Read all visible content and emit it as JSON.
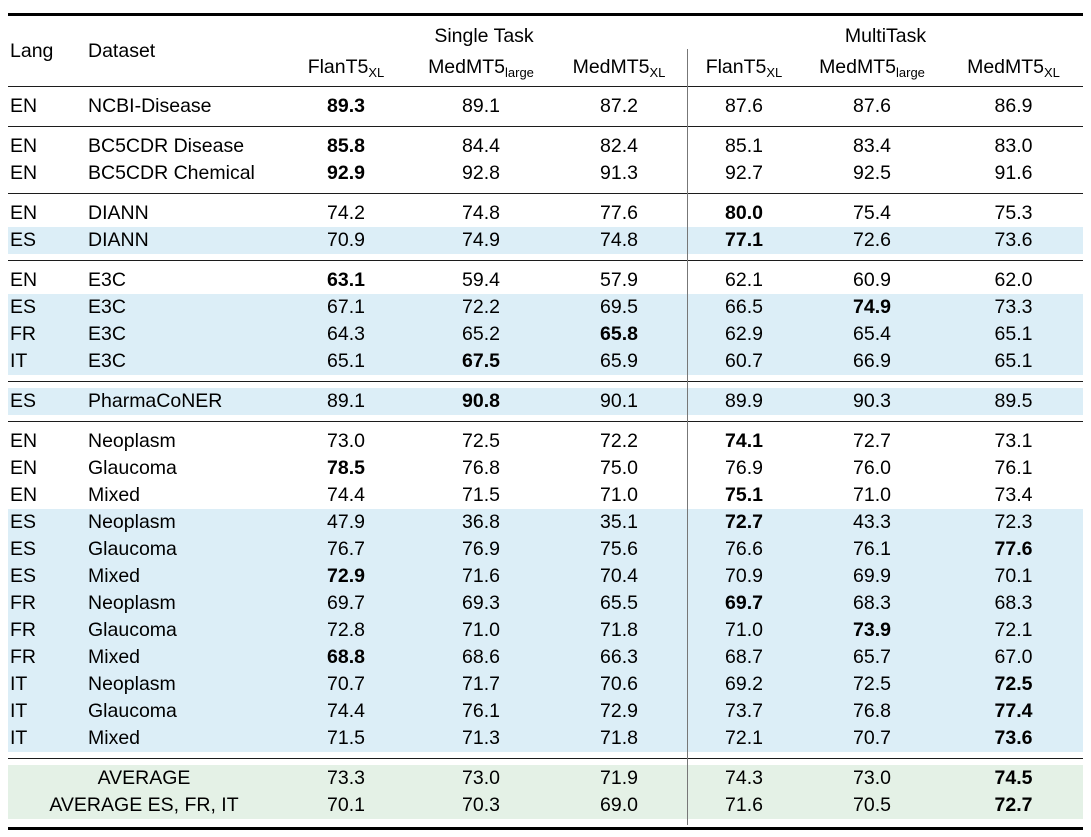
{
  "table": {
    "columns": {
      "lang": "Lang",
      "dataset": "Dataset",
      "single_task": "Single Task",
      "multitask": "MultiTask",
      "model_headers": [
        {
          "base": "FlanT5",
          "sub": "XL"
        },
        {
          "base": "MedMT5",
          "sub": "large"
        },
        {
          "base": "MedMT5",
          "sub": "XL"
        },
        {
          "base": "FlanT5",
          "sub": "XL"
        },
        {
          "base": "MedMT5",
          "sub": "large"
        },
        {
          "base": "MedMT5",
          "sub": "XL"
        }
      ]
    },
    "colors": {
      "highlight_blue": "#dceef7",
      "highlight_green": "#e4f1e6",
      "rule": "#1c1c1c",
      "divider": "#777777"
    },
    "groups": [
      {
        "rows": [
          {
            "lang": "EN",
            "dataset": "NCBI-Disease",
            "values": [
              "89.3",
              "89.1",
              "87.2",
              "87.6",
              "87.6",
              "86.9"
            ],
            "bold": 0,
            "hl": "none"
          }
        ]
      },
      {
        "rows": [
          {
            "lang": "EN",
            "dataset": "BC5CDR Disease",
            "values": [
              "85.8",
              "84.4",
              "82.4",
              "85.1",
              "83.4",
              "83.0"
            ],
            "bold": 0,
            "hl": "none"
          },
          {
            "lang": "EN",
            "dataset": "BC5CDR Chemical",
            "values": [
              "92.9",
              "92.8",
              "91.3",
              "92.7",
              "92.5",
              "91.6"
            ],
            "bold": 0,
            "hl": "none"
          }
        ]
      },
      {
        "rows": [
          {
            "lang": "EN",
            "dataset": "DIANN",
            "values": [
              "74.2",
              "74.8",
              "77.6",
              "80.0",
              "75.4",
              "75.3"
            ],
            "bold": 3,
            "hl": "none"
          },
          {
            "lang": "ES",
            "dataset": "DIANN",
            "values": [
              "70.9",
              "74.9",
              "74.8",
              "77.1",
              "72.6",
              "73.6"
            ],
            "bold": 3,
            "hl": "blue"
          }
        ]
      },
      {
        "rows": [
          {
            "lang": "EN",
            "dataset": "E3C",
            "values": [
              "63.1",
              "59.4",
              "57.9",
              "62.1",
              "60.9",
              "62.0"
            ],
            "bold": 0,
            "hl": "none"
          },
          {
            "lang": "ES",
            "dataset": "E3C",
            "values": [
              "67.1",
              "72.2",
              "69.5",
              "66.5",
              "74.9",
              "73.3"
            ],
            "bold": 4,
            "hl": "blue"
          },
          {
            "lang": "FR",
            "dataset": "E3C",
            "values": [
              "64.3",
              "65.2",
              "65.8",
              "62.9",
              "65.4",
              "65.1"
            ],
            "bold": 2,
            "hl": "blue"
          },
          {
            "lang": "IT",
            "dataset": "E3C",
            "values": [
              "65.1",
              "67.5",
              "65.9",
              "60.7",
              "66.9",
              "65.1"
            ],
            "bold": 1,
            "hl": "blue"
          }
        ]
      },
      {
        "rows": [
          {
            "lang": "ES",
            "dataset": "PharmaCoNER",
            "values": [
              "89.1",
              "90.8",
              "90.1",
              "89.9",
              "90.3",
              "89.5"
            ],
            "bold": 1,
            "hl": "blue"
          }
        ]
      },
      {
        "rows": [
          {
            "lang": "EN",
            "dataset": "Neoplasm",
            "values": [
              "73.0",
              "72.5",
              "72.2",
              "74.1",
              "72.7",
              "73.1"
            ],
            "bold": 3,
            "hl": "none"
          },
          {
            "lang": "EN",
            "dataset": "Glaucoma",
            "values": [
              "78.5",
              "76.8",
              "75.0",
              "76.9",
              "76.0",
              "76.1"
            ],
            "bold": 0,
            "hl": "none"
          },
          {
            "lang": "EN",
            "dataset": "Mixed",
            "values": [
              "74.4",
              "71.5",
              "71.0",
              "75.1",
              "71.0",
              "73.4"
            ],
            "bold": 3,
            "hl": "none"
          },
          {
            "lang": "ES",
            "dataset": "Neoplasm",
            "values": [
              "47.9",
              "36.8",
              "35.1",
              "72.7",
              "43.3",
              "72.3"
            ],
            "bold": 3,
            "hl": "blue"
          },
          {
            "lang": "ES",
            "dataset": "Glaucoma",
            "values": [
              "76.7",
              "76.9",
              "75.6",
              "76.6",
              "76.1",
              "77.6"
            ],
            "bold": 5,
            "hl": "blue"
          },
          {
            "lang": "ES",
            "dataset": "Mixed",
            "values": [
              "72.9",
              "71.6",
              "70.4",
              "70.9",
              "69.9",
              "70.1"
            ],
            "bold": 0,
            "hl": "blue"
          },
          {
            "lang": "FR",
            "dataset": "Neoplasm",
            "values": [
              "69.7",
              "69.3",
              "65.5",
              "69.7",
              "68.3",
              "68.3"
            ],
            "bold": 3,
            "hl": "blue"
          },
          {
            "lang": "FR",
            "dataset": "Glaucoma",
            "values": [
              "72.8",
              "71.0",
              "71.8",
              "71.0",
              "73.9",
              "72.1"
            ],
            "bold": 4,
            "hl": "blue"
          },
          {
            "lang": "FR",
            "dataset": "Mixed",
            "values": [
              "68.8",
              "68.6",
              "66.3",
              "68.7",
              "65.7",
              "67.0"
            ],
            "bold": 0,
            "hl": "blue"
          },
          {
            "lang": "IT",
            "dataset": "Neoplasm",
            "values": [
              "70.7",
              "71.7",
              "70.6",
              "69.2",
              "72.5",
              "72.5"
            ],
            "bold": 5,
            "hl": "blue"
          },
          {
            "lang": "IT",
            "dataset": "Glaucoma",
            "values": [
              "74.4",
              "76.1",
              "72.9",
              "73.7",
              "76.8",
              "77.4"
            ],
            "bold": 5,
            "hl": "blue"
          },
          {
            "lang": "IT",
            "dataset": "Mixed",
            "values": [
              "71.5",
              "71.3",
              "71.8",
              "72.1",
              "70.7",
              "73.6"
            ],
            "bold": 5,
            "hl": "blue"
          }
        ]
      },
      {
        "rows": [
          {
            "label": "AVERAGE",
            "values": [
              "73.3",
              "73.0",
              "71.9",
              "74.3",
              "73.0",
              "74.5"
            ],
            "bold": 5,
            "hl": "green"
          },
          {
            "label": "AVERAGE ES, FR, IT",
            "values": [
              "70.1",
              "70.3",
              "69.0",
              "71.6",
              "70.5",
              "72.7"
            ],
            "bold": 5,
            "hl": "green"
          }
        ]
      }
    ]
  }
}
